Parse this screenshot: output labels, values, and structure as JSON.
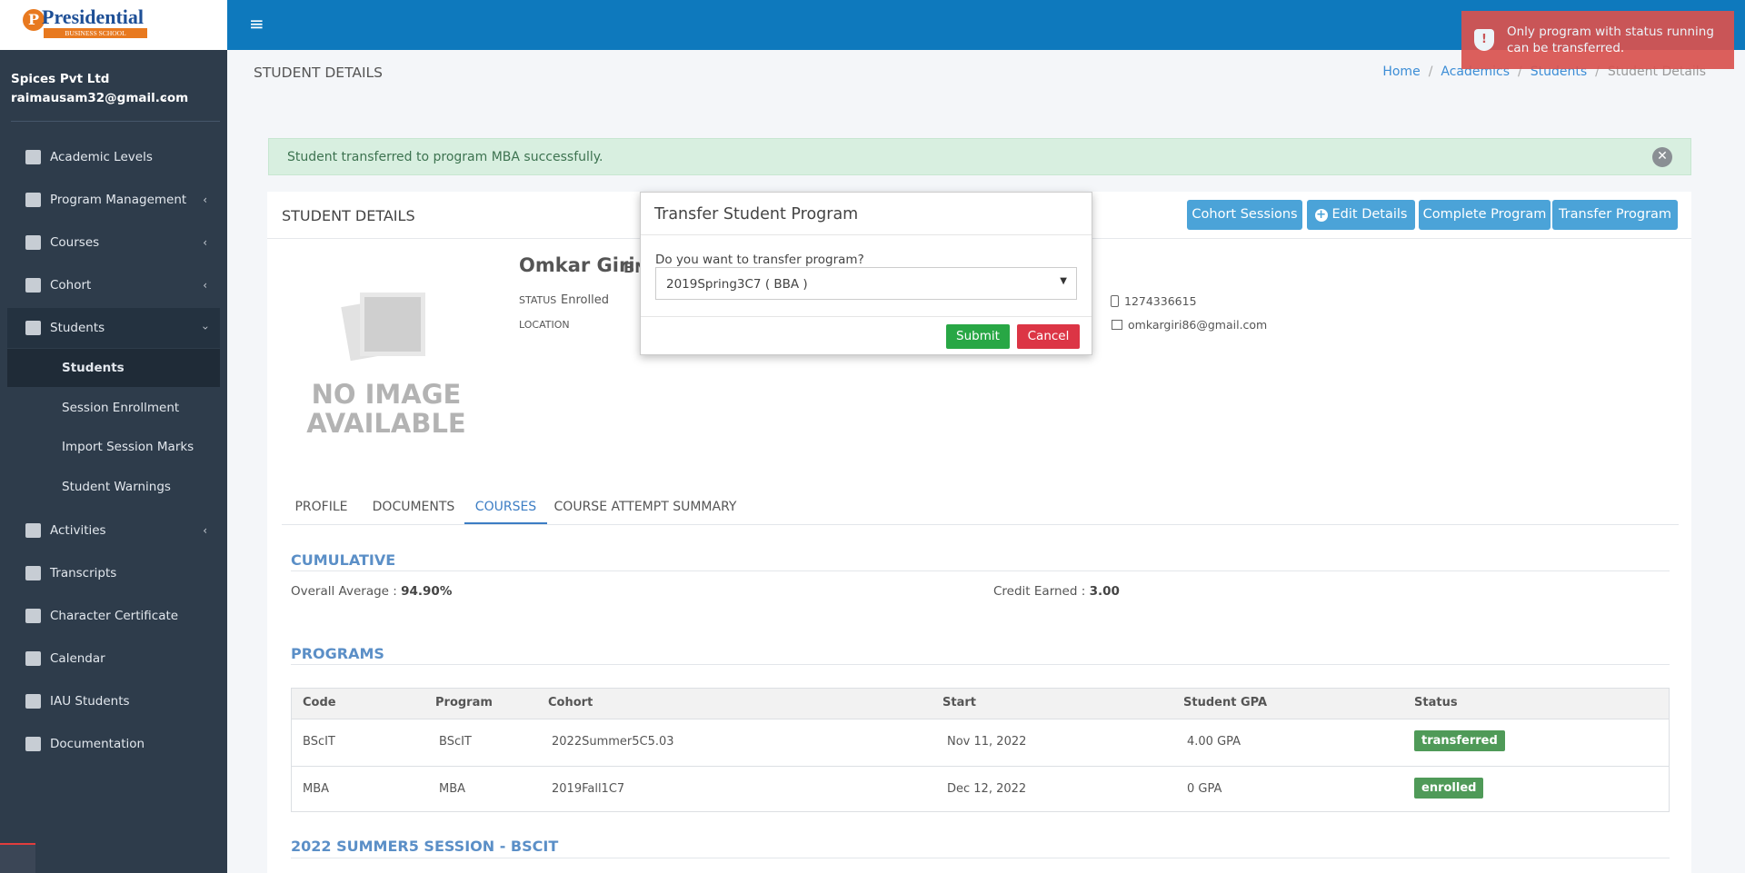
{
  "brand": {
    "name": "Presidential",
    "subtitle": "BUSINESS SCHOOL"
  },
  "sidebar": {
    "org": "Spices Pvt Ltd",
    "email": "raimausam32@gmail.com",
    "menu": [
      {
        "label": "Academic Levels"
      },
      {
        "label": "Program Management",
        "expandable": true
      },
      {
        "label": "Courses",
        "expandable": true
      },
      {
        "label": "Cohort",
        "expandable": true
      },
      {
        "label": "Students",
        "expandable": true,
        "expanded": true,
        "children": [
          {
            "label": "Students",
            "active": true
          },
          {
            "label": "Session Enrollment"
          },
          {
            "label": "Import Session Marks"
          },
          {
            "label": "Student Warnings"
          }
        ]
      },
      {
        "label": "Activities",
        "expandable": true
      },
      {
        "label": "Transcripts"
      },
      {
        "label": "Character Certificate"
      },
      {
        "label": "Calendar"
      },
      {
        "label": "IAU Students"
      },
      {
        "label": "Documentation"
      }
    ]
  },
  "header": {
    "title": "STUDENT DETAILS",
    "breadcrumb": [
      "Home",
      "Academics",
      "Students",
      "Student Details"
    ]
  },
  "toast": "Only program with status running can be transferred.",
  "alert": "Student transferred to program MBA successfully.",
  "card": {
    "title": "STUDENT DETAILS",
    "buttons": [
      "Cohort Sessions",
      "Edit Details",
      "Complete Program",
      "Transfer Program"
    ]
  },
  "student": {
    "no_image": "NO IMAGE AVAILABLE",
    "name": "Omkar Giri",
    "id_prefix": "BN",
    "status_label": "STATUS",
    "status": "Enrolled",
    "location_label": "LOCATION",
    "phone": "1274336615",
    "email": "omkargiri86@gmail.com"
  },
  "tabs": [
    {
      "label": "PROFILE"
    },
    {
      "label": "DOCUMENTS"
    },
    {
      "label": "COURSES",
      "active": true
    },
    {
      "label": "COURSE ATTEMPT SUMMARY"
    }
  ],
  "cumulative": {
    "title": "CUMULATIVE",
    "overall_label": "Overall Average :",
    "overall": "94.90%",
    "credit_label": "Credit Earned :",
    "credit": "3.00"
  },
  "programs": {
    "title": "PROGRAMS",
    "columns": [
      "Code",
      "Program",
      "Cohort",
      "Start",
      "Student GPA",
      "Status"
    ],
    "rows": [
      [
        "BScIT",
        "BScIT",
        "2022Summer5C5.03",
        "Nov 11, 2022",
        "4.00 GPA",
        "transferred"
      ],
      [
        "MBA",
        "MBA",
        "2019Fall1C7",
        "Dec 12, 2022",
        "0 GPA",
        "enrolled"
      ]
    ]
  },
  "session_title": "2022 SUMMER5 SESSION - BSCIT",
  "modal": {
    "title": "Transfer Student Program",
    "question": "Do you want to transfer program?",
    "selected": "2019Spring3C7 ( BBA )",
    "submit": "Submit",
    "cancel": "Cancel"
  }
}
